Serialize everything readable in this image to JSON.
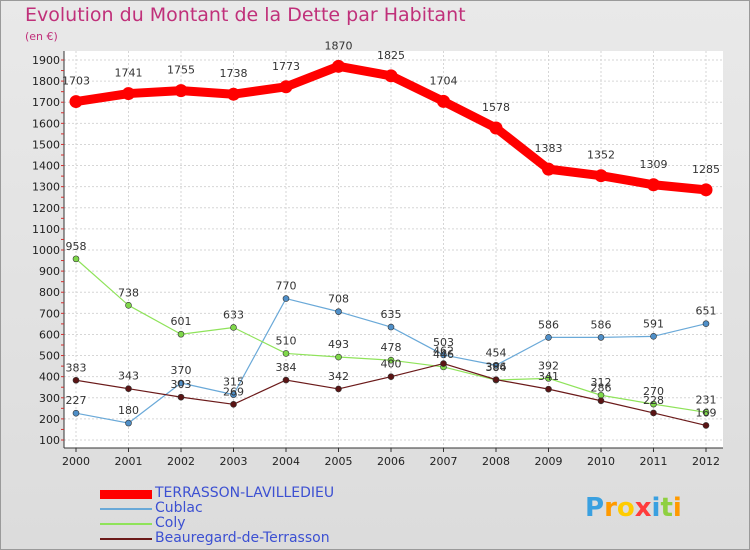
{
  "chart_data": {
    "type": "line",
    "title": "Evolution du Montant de la Dette par Habitant",
    "subtitle": "(en €)",
    "x": [
      "2000",
      "2001",
      "2002",
      "2003",
      "2004",
      "2005",
      "2006",
      "2007",
      "2008",
      "2009",
      "2010",
      "2011",
      "2012"
    ],
    "ylim": [
      100,
      1900
    ],
    "yticks": [
      100,
      200,
      300,
      400,
      500,
      600,
      700,
      800,
      900,
      1000,
      1100,
      1200,
      1300,
      1400,
      1500,
      1600,
      1700,
      1800,
      1900
    ],
    "grid": true,
    "legend_position": "bottom-left",
    "series": [
      {
        "name": "TERRASSON-LAVILLEDIEU",
        "color": "#ff0000",
        "values": [
          1703,
          1741,
          1755,
          1738,
          1773,
          1870,
          1825,
          1704,
          1578,
          1383,
          1352,
          1309,
          1285
        ]
      },
      {
        "name": "Cublac",
        "color": "#6aa9d8",
        "values": [
          227,
          180,
          370,
          315,
          770,
          708,
          635,
          503,
          454,
          586,
          586,
          591,
          651
        ]
      },
      {
        "name": "Coly",
        "color": "#8fe35a",
        "values": [
          958,
          738,
          601,
          633,
          510,
          493,
          478,
          446,
          384,
          392,
          312,
          270,
          231
        ]
      },
      {
        "name": "Beauregard-de-Terrasson",
        "color": "#6b1a1a",
        "values": [
          383,
          343,
          303,
          269,
          384,
          342,
          400,
          462,
          386,
          341,
          286,
          228,
          169
        ]
      }
    ]
  },
  "logo": {
    "letters": [
      "P",
      "r",
      "o",
      "x",
      "i",
      "t",
      "i"
    ],
    "colors": [
      "#3aa0e0",
      "#ff9a00",
      "#ffcc00",
      "#ff3c3c",
      "#3aa0e0",
      "#8fd040",
      "#ff9a00"
    ]
  }
}
